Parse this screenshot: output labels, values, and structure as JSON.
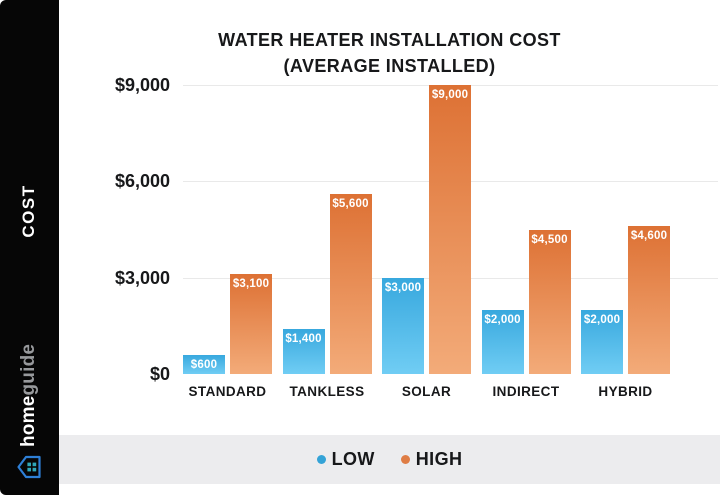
{
  "sidebar": {
    "cost_label": "COST",
    "brand": {
      "bold": "home",
      "light": "guide"
    },
    "brand_icon": "homeguide-house-icon",
    "colors": {
      "background": "#060606",
      "icon_outline": "#2e7fd6",
      "icon_panes": "#2fa6b8"
    }
  },
  "title": {
    "line1": "WATER HEATER INSTALLATION COST",
    "line2": "(AVERAGE INSTALLED)"
  },
  "legend": [
    {
      "label": "LOW",
      "color": "#34a3d7"
    },
    {
      "label": "HIGH",
      "color": "#df7d45"
    }
  ],
  "footer_background": "#ececee",
  "chart_data": {
    "type": "bar",
    "title": "WATER HEATER INSTALLATION COST (AVERAGE INSTALLED)",
    "ylabel": "COST",
    "xlabel": "",
    "categories": [
      "STANDARD",
      "TANKLESS",
      "SOLAR",
      "INDIRECT",
      "HYBRID"
    ],
    "series": [
      {
        "name": "LOW",
        "color_top": "#38a8de",
        "color_bottom": "#70cdf4",
        "values": [
          600,
          1400,
          3000,
          2000,
          2000
        ],
        "labels": [
          "$600",
          "$1,400",
          "$3,000",
          "$2,000",
          "$2,000"
        ]
      },
      {
        "name": "HIGH",
        "color_top": "#dd7134",
        "color_bottom": "#f3ab79",
        "values": [
          3100,
          5600,
          9000,
          4500,
          4600
        ],
        "labels": [
          "$3,100",
          "$5,600",
          "$9,000",
          "$4,500",
          "$4,600"
        ]
      }
    ],
    "yticks": [
      {
        "value": 0,
        "label": "$0"
      },
      {
        "value": 3000,
        "label": "$3,000"
      },
      {
        "value": 6000,
        "label": "$6,000"
      },
      {
        "value": 9000,
        "label": "$9,000"
      }
    ],
    "ylim": [
      0,
      9000
    ],
    "grid": true,
    "legend_position": "bottom"
  }
}
